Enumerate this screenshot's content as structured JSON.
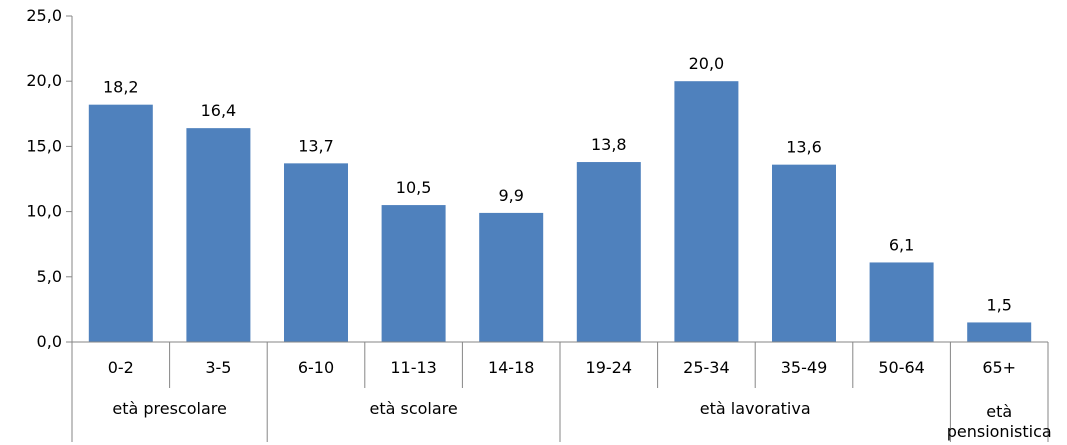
{
  "chart_data": {
    "type": "bar",
    "title": "",
    "xlabel": "",
    "ylabel": "",
    "ylim": [
      0,
      25
    ],
    "yticks": [
      "0,0",
      "5,0",
      "10,0",
      "15,0",
      "20,0",
      "25,0"
    ],
    "grid": false,
    "legend": "none",
    "bar_color": "#4F81BD",
    "categories": [
      "0-2",
      "3-5",
      "6-10",
      "11-13",
      "14-18",
      "19-24",
      "25-34",
      "35-49",
      "50-64",
      "65+"
    ],
    "values": [
      18.2,
      16.4,
      13.7,
      10.5,
      9.9,
      13.8,
      20.0,
      13.6,
      6.1,
      1.5
    ],
    "data_labels": [
      "18,2",
      "16,4",
      "13,7",
      "10,5",
      "9,9",
      "13,8",
      "20,0",
      "13,6",
      "6,1",
      "1,5"
    ],
    "groups": [
      {
        "label": "età prescolare",
        "start": 0,
        "end": 1
      },
      {
        "label": "età scolare",
        "start": 2,
        "end": 4
      },
      {
        "label": "età  lavorativa",
        "start": 5,
        "end": 8
      },
      {
        "label": "età pensionistica",
        "start": 9,
        "end": 9
      }
    ]
  }
}
